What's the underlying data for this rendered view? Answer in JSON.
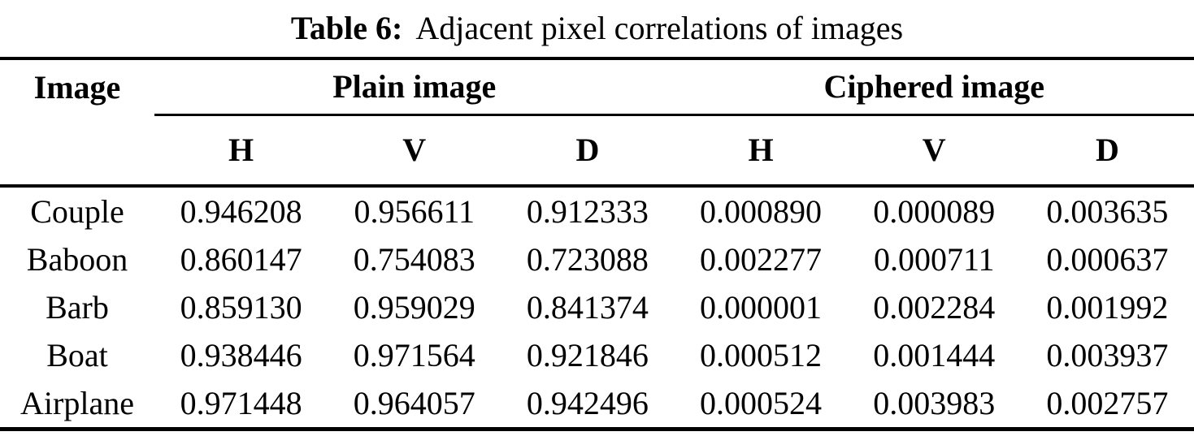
{
  "caption": {
    "label": "Table 6:",
    "text": "Adjacent pixel correlations of images"
  },
  "table": {
    "image_col_header": "Image",
    "groups": [
      {
        "label": "Plain image"
      },
      {
        "label": "Ciphered image"
      }
    ],
    "sub_headers": [
      "H",
      "V",
      "D",
      "H",
      "V",
      "D"
    ],
    "rows": [
      {
        "image": "Couple",
        "values": [
          "0.946208",
          "0.956611",
          "0.912333",
          "0.000890",
          "0.000089",
          "0.003635"
        ]
      },
      {
        "image": "Baboon",
        "values": [
          "0.860147",
          "0.754083",
          "0.723088",
          "0.002277",
          "0.000711",
          "0.000637"
        ]
      },
      {
        "image": "Barb",
        "values": [
          "0.859130",
          "0.959029",
          "0.841374",
          "0.000001",
          "0.002284",
          "0.001992"
        ]
      },
      {
        "image": "Boat",
        "values": [
          "0.938446",
          "0.971564",
          "0.921846",
          "0.000512",
          "0.001444",
          "0.003937"
        ]
      },
      {
        "image": "Airplane",
        "values": [
          "0.971448",
          "0.964057",
          "0.942496",
          "0.000524",
          "0.003983",
          "0.002757"
        ]
      }
    ]
  }
}
